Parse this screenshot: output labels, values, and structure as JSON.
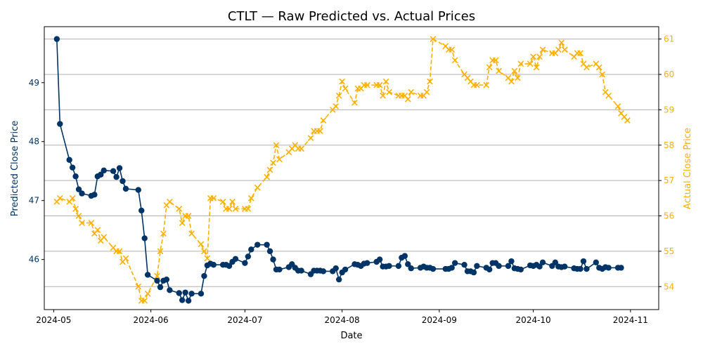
{
  "chart_data": {
    "type": "line",
    "title": "CTLT — Raw Predicted vs. Actual Prices",
    "xlabel": "Date",
    "ylabel_left": "Predicted Close Price",
    "ylabel_right": "Actual Close Price",
    "colors": {
      "predicted": "#003366",
      "actual": "#FFB000",
      "grid": "#b0b0b0",
      "axis": "#000000"
    },
    "xlim": [
      "2024-04-28",
      "2024-11-10"
    ],
    "ylim_left": [
      45.15,
      49.95
    ],
    "ylim_right": [
      53.35,
      61.35
    ],
    "grid": "horizontal lines at right-axis ticks",
    "x_ticks": [
      {
        "date": "2024-05-01",
        "label": "2024-05"
      },
      {
        "date": "2024-06-01",
        "label": "2024-06"
      },
      {
        "date": "2024-07-01",
        "label": "2024-07"
      },
      {
        "date": "2024-08-01",
        "label": "2024-08"
      },
      {
        "date": "2024-09-01",
        "label": "2024-09"
      },
      {
        "date": "2024-10-01",
        "label": "2024-10"
      },
      {
        "date": "2024-11-01",
        "label": "2024-11"
      }
    ],
    "y_ticks_left": [
      46,
      47,
      48,
      49
    ],
    "y_ticks_right": [
      54,
      55,
      56,
      57,
      58,
      59,
      60,
      61
    ],
    "series": [
      {
        "axis": "left",
        "marker": "circle",
        "linestyle": "solid",
        "points": [
          [
            "2024-05-02",
            49.74
          ],
          [
            "2024-05-03",
            48.3
          ],
          [
            "2024-05-06",
            47.69
          ],
          [
            "2024-05-07",
            47.56
          ],
          [
            "2024-05-08",
            47.41
          ],
          [
            "2024-05-09",
            47.19
          ],
          [
            "2024-05-10",
            47.12
          ],
          [
            "2024-05-13",
            47.08
          ],
          [
            "2024-05-14",
            47.1
          ],
          [
            "2024-05-15",
            47.41
          ],
          [
            "2024-05-16",
            47.44
          ],
          [
            "2024-05-17",
            47.51
          ],
          [
            "2024-05-20",
            47.5
          ],
          [
            "2024-05-21",
            47.4
          ],
          [
            "2024-05-22",
            47.55
          ],
          [
            "2024-05-23",
            47.33
          ],
          [
            "2024-05-24",
            47.2
          ],
          [
            "2024-05-28",
            47.18
          ],
          [
            "2024-05-29",
            46.83
          ],
          [
            "2024-05-30",
            46.36
          ],
          [
            "2024-05-31",
            45.74
          ],
          [
            "2024-06-03",
            45.64
          ],
          [
            "2024-06-04",
            45.53
          ],
          [
            "2024-06-05",
            45.64
          ],
          [
            "2024-06-06",
            45.66
          ],
          [
            "2024-06-07",
            45.48
          ],
          [
            "2024-06-10",
            45.43
          ],
          [
            "2024-06-11",
            45.31
          ],
          [
            "2024-06-12",
            45.44
          ],
          [
            "2024-06-13",
            45.3
          ],
          [
            "2024-06-14",
            45.42
          ],
          [
            "2024-06-17",
            45.42
          ],
          [
            "2024-06-18",
            45.72
          ],
          [
            "2024-06-19",
            45.9
          ],
          [
            "2024-06-20",
            45.93
          ],
          [
            "2024-06-21",
            45.91
          ],
          [
            "2024-06-24",
            45.91
          ],
          [
            "2024-06-25",
            45.91
          ],
          [
            "2024-06-26",
            45.89
          ],
          [
            "2024-06-27",
            45.96
          ],
          [
            "2024-06-28",
            46.01
          ],
          [
            "2024-07-01",
            45.94
          ],
          [
            "2024-07-02",
            46.05
          ],
          [
            "2024-07-03",
            46.17
          ],
          [
            "2024-07-05",
            46.25
          ],
          [
            "2024-07-08",
            46.25
          ],
          [
            "2024-07-09",
            46.14
          ],
          [
            "2024-07-10",
            46.0
          ],
          [
            "2024-07-11",
            45.83
          ],
          [
            "2024-07-12",
            45.83
          ],
          [
            "2024-07-15",
            45.87
          ],
          [
            "2024-07-16",
            45.92
          ],
          [
            "2024-07-17",
            45.86
          ],
          [
            "2024-07-18",
            45.81
          ],
          [
            "2024-07-19",
            45.81
          ],
          [
            "2024-07-22",
            45.75
          ],
          [
            "2024-07-23",
            45.81
          ],
          [
            "2024-07-24",
            45.81
          ],
          [
            "2024-07-25",
            45.81
          ],
          [
            "2024-07-26",
            45.8
          ],
          [
            "2024-07-29",
            45.8
          ],
          [
            "2024-07-30",
            45.85
          ],
          [
            "2024-07-31",
            45.66
          ],
          [
            "2024-08-01",
            45.78
          ],
          [
            "2024-08-02",
            45.83
          ],
          [
            "2024-08-05",
            45.92
          ],
          [
            "2024-08-06",
            45.91
          ],
          [
            "2024-08-07",
            45.89
          ],
          [
            "2024-08-08",
            45.93
          ],
          [
            "2024-08-09",
            45.94
          ],
          [
            "2024-08-12",
            45.96
          ],
          [
            "2024-08-13",
            46.0
          ],
          [
            "2024-08-14",
            45.88
          ],
          [
            "2024-08-15",
            45.88
          ],
          [
            "2024-08-16",
            45.89
          ],
          [
            "2024-08-19",
            45.89
          ],
          [
            "2024-08-20",
            46.03
          ],
          [
            "2024-08-21",
            46.06
          ],
          [
            "2024-08-22",
            45.92
          ],
          [
            "2024-08-23",
            45.85
          ],
          [
            "2024-08-26",
            45.86
          ],
          [
            "2024-08-27",
            45.88
          ],
          [
            "2024-08-28",
            45.86
          ],
          [
            "2024-08-29",
            45.86
          ],
          [
            "2024-08-30",
            45.84
          ],
          [
            "2024-09-03",
            45.84
          ],
          [
            "2024-09-04",
            45.84
          ],
          [
            "2024-09-05",
            45.86
          ],
          [
            "2024-09-06",
            45.94
          ],
          [
            "2024-09-09",
            45.91
          ],
          [
            "2024-09-10",
            45.8
          ],
          [
            "2024-09-11",
            45.8
          ],
          [
            "2024-09-12",
            45.78
          ],
          [
            "2024-09-13",
            45.89
          ],
          [
            "2024-09-16",
            45.86
          ],
          [
            "2024-09-17",
            45.83
          ],
          [
            "2024-09-18",
            45.94
          ],
          [
            "2024-09-19",
            45.94
          ],
          [
            "2024-09-20",
            45.89
          ],
          [
            "2024-09-23",
            45.89
          ],
          [
            "2024-09-24",
            45.97
          ],
          [
            "2024-09-25",
            45.85
          ],
          [
            "2024-09-26",
            45.84
          ],
          [
            "2024-09-27",
            45.83
          ],
          [
            "2024-09-30",
            45.9
          ],
          [
            "2024-10-01",
            45.89
          ],
          [
            "2024-10-02",
            45.91
          ],
          [
            "2024-10-03",
            45.88
          ],
          [
            "2024-10-04",
            45.95
          ],
          [
            "2024-10-07",
            45.89
          ],
          [
            "2024-10-08",
            45.95
          ],
          [
            "2024-10-09",
            45.88
          ],
          [
            "2024-10-10",
            45.87
          ],
          [
            "2024-10-11",
            45.88
          ],
          [
            "2024-10-14",
            45.85
          ],
          [
            "2024-10-15",
            45.84
          ],
          [
            "2024-10-16",
            45.84
          ],
          [
            "2024-10-17",
            45.97
          ],
          [
            "2024-10-18",
            45.84
          ],
          [
            "2024-10-21",
            45.95
          ],
          [
            "2024-10-22",
            45.86
          ],
          [
            "2024-10-23",
            45.84
          ],
          [
            "2024-10-24",
            45.87
          ],
          [
            "2024-10-25",
            45.86
          ],
          [
            "2024-10-28",
            45.86
          ],
          [
            "2024-10-29",
            45.86
          ]
        ]
      },
      {
        "axis": "right",
        "marker": "x",
        "linestyle": "dashed",
        "points": [
          [
            "2024-05-02",
            56.4
          ],
          [
            "2024-05-03",
            56.5
          ],
          [
            "2024-05-06",
            56.4
          ],
          [
            "2024-05-07",
            56.5
          ],
          [
            "2024-05-08",
            56.2
          ],
          [
            "2024-05-09",
            56.0
          ],
          [
            "2024-05-10",
            55.8
          ],
          [
            "2024-05-13",
            55.8
          ],
          [
            "2024-05-14",
            55.5
          ],
          [
            "2024-05-15",
            55.6
          ],
          [
            "2024-05-16",
            55.3
          ],
          [
            "2024-05-17",
            55.4
          ],
          [
            "2024-05-20",
            55.1
          ],
          [
            "2024-05-21",
            55.0
          ],
          [
            "2024-05-22",
            55.0
          ],
          [
            "2024-05-23",
            54.7
          ],
          [
            "2024-05-24",
            54.8
          ],
          [
            "2024-05-28",
            54.0
          ],
          [
            "2024-05-29",
            53.6
          ],
          [
            "2024-05-30",
            53.6
          ],
          [
            "2024-05-31",
            53.8
          ],
          [
            "2024-06-03",
            54.3
          ],
          [
            "2024-06-04",
            55.0
          ],
          [
            "2024-06-05",
            55.5
          ],
          [
            "2024-06-06",
            56.3
          ],
          [
            "2024-06-07",
            56.4
          ],
          [
            "2024-06-10",
            56.2
          ],
          [
            "2024-06-11",
            55.8
          ],
          [
            "2024-06-12",
            56.0
          ],
          [
            "2024-06-13",
            56.0
          ],
          [
            "2024-06-14",
            55.5
          ],
          [
            "2024-06-17",
            55.2
          ],
          [
            "2024-06-18",
            55.0
          ],
          [
            "2024-06-19",
            54.8
          ],
          [
            "2024-06-20",
            56.5
          ],
          [
            "2024-06-21",
            56.5
          ],
          [
            "2024-06-24",
            56.4
          ],
          [
            "2024-06-25",
            56.2
          ],
          [
            "2024-06-26",
            56.2
          ],
          [
            "2024-06-27",
            56.4
          ],
          [
            "2024-06-28",
            56.2
          ],
          [
            "2024-07-01",
            56.2
          ],
          [
            "2024-07-02",
            56.2
          ],
          [
            "2024-07-03",
            56.5
          ],
          [
            "2024-07-05",
            56.8
          ],
          [
            "2024-07-08",
            57.1
          ],
          [
            "2024-07-09",
            57.3
          ],
          [
            "2024-07-10",
            57.5
          ],
          [
            "2024-07-11",
            58.0
          ],
          [
            "2024-07-12",
            57.6
          ],
          [
            "2024-07-15",
            57.8
          ],
          [
            "2024-07-16",
            57.9
          ],
          [
            "2024-07-17",
            58.0
          ],
          [
            "2024-07-18",
            57.9
          ],
          [
            "2024-07-19",
            57.9
          ],
          [
            "2024-07-22",
            58.2
          ],
          [
            "2024-07-23",
            58.4
          ],
          [
            "2024-07-24",
            58.4
          ],
          [
            "2024-07-25",
            58.4
          ],
          [
            "2024-07-26",
            58.7
          ],
          [
            "2024-07-29",
            59.0
          ],
          [
            "2024-07-30",
            59.1
          ],
          [
            "2024-07-31",
            59.4
          ],
          [
            "2024-08-01",
            59.8
          ],
          [
            "2024-08-02",
            59.6
          ],
          [
            "2024-08-05",
            59.2
          ],
          [
            "2024-08-06",
            59.6
          ],
          [
            "2024-08-07",
            59.6
          ],
          [
            "2024-08-08",
            59.7
          ],
          [
            "2024-08-09",
            59.7
          ],
          [
            "2024-08-12",
            59.7
          ],
          [
            "2024-08-13",
            59.7
          ],
          [
            "2024-08-14",
            59.4
          ],
          [
            "2024-08-15",
            59.8
          ],
          [
            "2024-08-16",
            59.5
          ],
          [
            "2024-08-19",
            59.4
          ],
          [
            "2024-08-20",
            59.4
          ],
          [
            "2024-08-21",
            59.4
          ],
          [
            "2024-08-22",
            59.3
          ],
          [
            "2024-08-23",
            59.5
          ],
          [
            "2024-08-26",
            59.4
          ],
          [
            "2024-08-27",
            59.4
          ],
          [
            "2024-08-28",
            59.5
          ],
          [
            "2024-08-29",
            59.8
          ],
          [
            "2024-08-30",
            61.0
          ],
          [
            "2024-09-03",
            60.8
          ],
          [
            "2024-09-04",
            60.7
          ],
          [
            "2024-09-05",
            60.7
          ],
          [
            "2024-09-06",
            60.4
          ],
          [
            "2024-09-09",
            60.0
          ],
          [
            "2024-09-10",
            59.9
          ],
          [
            "2024-09-11",
            59.8
          ],
          [
            "2024-09-12",
            59.7
          ],
          [
            "2024-09-13",
            59.7
          ],
          [
            "2024-09-16",
            59.7
          ],
          [
            "2024-09-17",
            60.2
          ],
          [
            "2024-09-18",
            60.4
          ],
          [
            "2024-09-19",
            60.4
          ],
          [
            "2024-09-20",
            60.1
          ],
          [
            "2024-09-23",
            59.9
          ],
          [
            "2024-09-24",
            59.8
          ],
          [
            "2024-09-25",
            60.1
          ],
          [
            "2024-09-26",
            59.9
          ],
          [
            "2024-09-27",
            60.3
          ],
          [
            "2024-09-30",
            60.3
          ],
          [
            "2024-10-01",
            60.5
          ],
          [
            "2024-10-02",
            60.2
          ],
          [
            "2024-10-03",
            60.5
          ],
          [
            "2024-10-04",
            60.7
          ],
          [
            "2024-10-07",
            60.6
          ],
          [
            "2024-10-08",
            60.6
          ],
          [
            "2024-10-09",
            60.7
          ],
          [
            "2024-10-10",
            60.9
          ],
          [
            "2024-10-11",
            60.7
          ],
          [
            "2024-10-14",
            60.5
          ],
          [
            "2024-10-15",
            60.6
          ],
          [
            "2024-10-16",
            60.6
          ],
          [
            "2024-10-17",
            60.3
          ],
          [
            "2024-10-18",
            60.2
          ],
          [
            "2024-10-21",
            60.3
          ],
          [
            "2024-10-22",
            60.2
          ],
          [
            "2024-10-23",
            60.0
          ],
          [
            "2024-10-24",
            59.5
          ],
          [
            "2024-10-25",
            59.4
          ],
          [
            "2024-10-28",
            59.1
          ],
          [
            "2024-10-29",
            58.9
          ],
          [
            "2024-10-30",
            58.8
          ],
          [
            "2024-10-31",
            58.7
          ]
        ]
      }
    ]
  }
}
